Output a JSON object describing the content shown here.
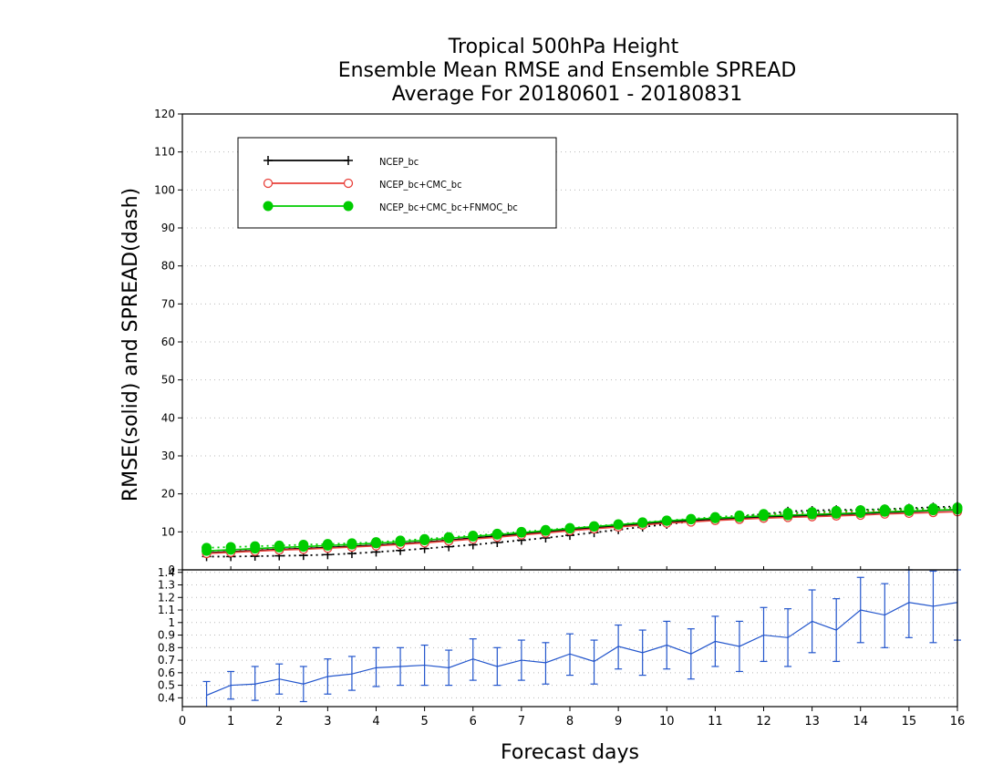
{
  "chart_data": [
    {
      "type": "line",
      "title_lines": [
        "Tropical 500hPa Height",
        "Ensemble Mean RMSE and Ensemble SPREAD",
        "Average For 20180601 - 20180831"
      ],
      "ylabel": "RMSE(solid) and SPREAD(dash)",
      "xlim": [
        0,
        16
      ],
      "ylim": [
        0,
        120
      ],
      "yticks": [
        0,
        10,
        20,
        30,
        40,
        50,
        60,
        70,
        80,
        90,
        100,
        110,
        120
      ],
      "grid": true,
      "legend_position": "top-left",
      "x": [
        0.5,
        1,
        1.5,
        2,
        2.5,
        3,
        3.5,
        4,
        4.5,
        5,
        5.5,
        6,
        6.5,
        7,
        7.5,
        8,
        8.5,
        9,
        9.5,
        10,
        10.5,
        11,
        11.5,
        12,
        12.5,
        13,
        13.5,
        14,
        14.5,
        15,
        15.5,
        16
      ],
      "series": [
        {
          "name": "NCEP_bc",
          "color": "#000000",
          "marker": "plus",
          "rmse": [
            4.5,
            4.8,
            5.1,
            5.4,
            5.6,
            5.9,
            6.2,
            6.5,
            6.9,
            7.3,
            7.8,
            8.4,
            8.9,
            9.5,
            10.0,
            10.6,
            11.1,
            11.6,
            12.1,
            12.6,
            13.0,
            13.3,
            13.6,
            13.9,
            14.1,
            14.3,
            14.6,
            14.8,
            15.1,
            15.3,
            15.6,
            15.8
          ],
          "spread": [
            3.5,
            3.5,
            3.6,
            3.7,
            3.8,
            4.0,
            4.3,
            4.7,
            5.1,
            5.6,
            6.1,
            6.6,
            7.2,
            7.8,
            8.4,
            9.1,
            9.8,
            10.6,
            11.3,
            12.0,
            12.7,
            13.4,
            14.0,
            14.7,
            15.4,
            15.6,
            15.8,
            15.8,
            16.0,
            16.2,
            16.5,
            16.7
          ]
        },
        {
          "name": "NCEP_bc+CMC_bc",
          "color": "#e8403a",
          "marker": "open-circle",
          "rmse": [
            4.3,
            4.6,
            4.9,
            5.2,
            5.4,
            5.7,
            6.0,
            6.3,
            6.7,
            7.1,
            7.6,
            8.1,
            8.6,
            9.2,
            9.7,
            10.3,
            10.8,
            11.3,
            11.8,
            12.3,
            12.6,
            13.0,
            13.3,
            13.6,
            13.8,
            14.0,
            14.2,
            14.4,
            14.7,
            14.9,
            15.1,
            15.3
          ],
          "spread": [
            5.0,
            5.2,
            5.4,
            5.6,
            5.8,
            6.0,
            6.3,
            6.6,
            7.0,
            7.4,
            7.9,
            8.4,
            8.9,
            9.4,
            9.9,
            10.5,
            11.0,
            11.5,
            12.0,
            12.5,
            13.0,
            13.5,
            13.9,
            14.3,
            14.7,
            14.9,
            15.2,
            15.3,
            15.6,
            15.8,
            16.0,
            16.2
          ]
        },
        {
          "name": "NCEP_bc+CMC_bc+FNMOC_bc",
          "color": "#00cc00",
          "marker": "filled-circle",
          "rmse": [
            5.0,
            5.3,
            5.6,
            5.9,
            6.1,
            6.4,
            6.7,
            7.0,
            7.4,
            7.8,
            8.3,
            8.8,
            9.3,
            9.8,
            10.3,
            10.9,
            11.4,
            11.9,
            12.4,
            12.9,
            13.3,
            13.6,
            13.9,
            14.2,
            14.4,
            14.6,
            14.8,
            15.0,
            15.3,
            15.5,
            15.7,
            15.9
          ],
          "spread": [
            5.8,
            6.0,
            6.2,
            6.4,
            6.6,
            6.8,
            7.0,
            7.3,
            7.7,
            8.1,
            8.6,
            9.0,
            9.5,
            10.0,
            10.5,
            11.0,
            11.5,
            12.0,
            12.5,
            13.0,
            13.4,
            13.9,
            14.3,
            14.7,
            15.0,
            15.2,
            15.5,
            15.7,
            15.9,
            16.0,
            16.2,
            16.4
          ]
        }
      ]
    },
    {
      "type": "line",
      "subtype": "errorbar",
      "xlabel": "Forecast days",
      "xlim": [
        0,
        16
      ],
      "xticks": [
        0,
        1,
        2,
        3,
        4,
        5,
        6,
        7,
        8,
        9,
        10,
        11,
        12,
        13,
        14,
        15,
        16
      ],
      "ylim": [
        0.33,
        1.42
      ],
      "yticks": [
        0.4,
        0.5,
        0.6,
        0.7,
        0.8,
        0.9,
        1,
        1.1,
        1.2,
        1.3,
        1.4
      ],
      "grid": true,
      "series": [
        {
          "color": "#2255cc",
          "x": [
            0.5,
            1,
            1.5,
            2,
            2.5,
            3,
            3.5,
            4,
            4.5,
            5,
            5.5,
            6,
            6.5,
            7,
            7.5,
            8,
            8.5,
            9,
            9.5,
            10,
            10.5,
            11,
            11.5,
            12,
            12.5,
            13,
            13.5,
            14,
            14.5,
            15,
            15.5,
            16
          ],
          "values": [
            0.42,
            0.5,
            0.51,
            0.55,
            0.51,
            0.57,
            0.59,
            0.64,
            0.65,
            0.66,
            0.64,
            0.71,
            0.65,
            0.7,
            0.68,
            0.75,
            0.69,
            0.81,
            0.76,
            0.82,
            0.75,
            0.85,
            0.81,
            0.9,
            0.88,
            1.01,
            0.94,
            1.1,
            1.06,
            1.16,
            1.13,
            1.16
          ],
          "lower": [
            0.31,
            0.39,
            0.38,
            0.43,
            0.37,
            0.43,
            0.46,
            0.49,
            0.5,
            0.5,
            0.5,
            0.54,
            0.5,
            0.54,
            0.51,
            0.58,
            0.51,
            0.63,
            0.58,
            0.63,
            0.55,
            0.65,
            0.61,
            0.69,
            0.65,
            0.76,
            0.69,
            0.84,
            0.8,
            0.88,
            0.84,
            0.86
          ],
          "upper": [
            0.53,
            0.61,
            0.65,
            0.67,
            0.65,
            0.71,
            0.73,
            0.8,
            0.8,
            0.82,
            0.78,
            0.87,
            0.8,
            0.86,
            0.84,
            0.91,
            0.86,
            0.98,
            0.94,
            1.01,
            0.95,
            1.05,
            1.01,
            1.12,
            1.11,
            1.26,
            1.19,
            1.36,
            1.31,
            1.42,
            1.41,
            1.42
          ]
        }
      ]
    }
  ]
}
